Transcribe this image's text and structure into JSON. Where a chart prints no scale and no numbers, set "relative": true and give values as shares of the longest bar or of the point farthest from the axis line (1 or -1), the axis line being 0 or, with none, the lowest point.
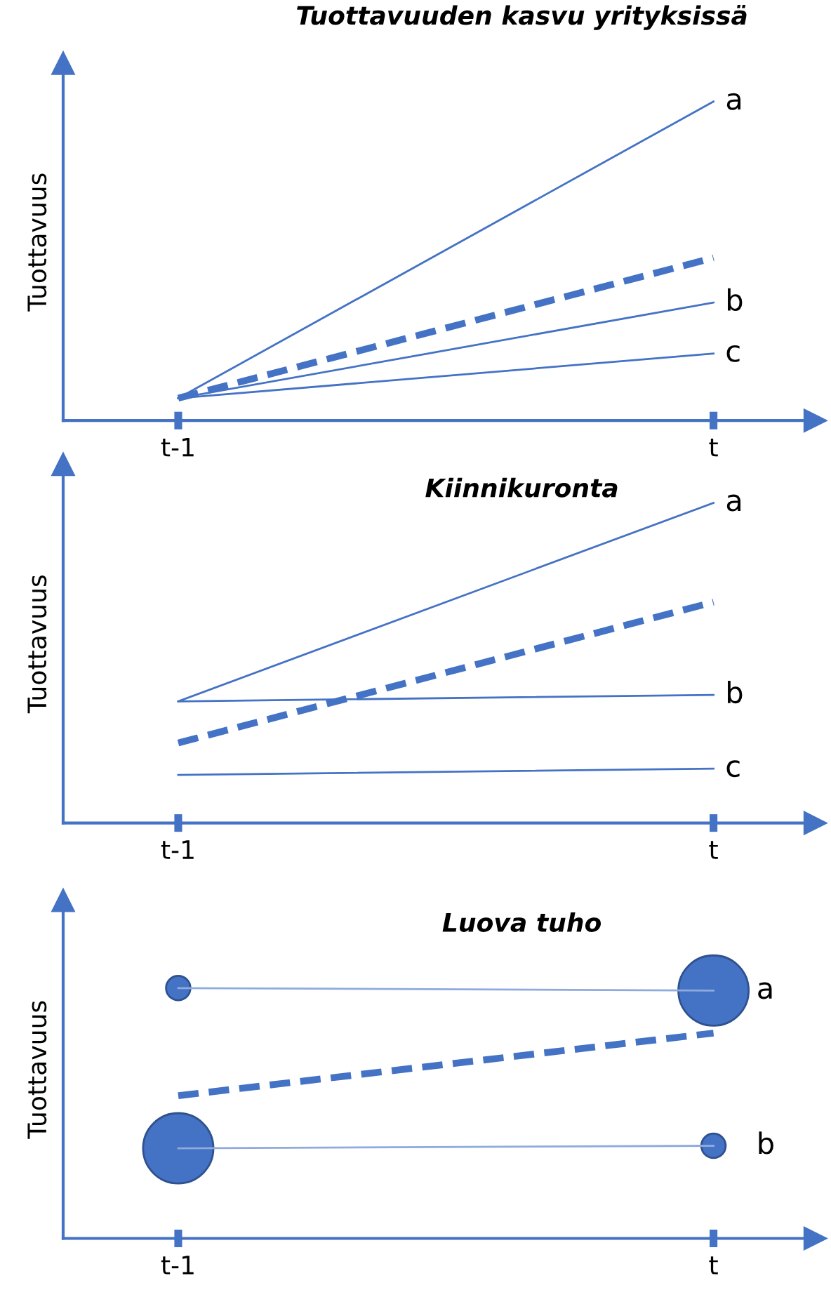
{
  "chart_data": [
    {
      "type": "line",
      "title": "Tuottavuuden kasvu yrityksissä",
      "ylabel": "Tuottavuus",
      "relative": true,
      "categories": [
        "t-1",
        "t"
      ],
      "grid": false,
      "legend": false,
      "marker": "none",
      "series": [
        {
          "name": "a",
          "color": "#4472c4",
          "values": [
            0.07,
            1
          ],
          "line_style": "solid"
        },
        {
          "color": "#4472c4",
          "values": [
            0.07,
            0.51
          ],
          "line_style": "dashed"
        },
        {
          "name": "b",
          "color": "#4472c4",
          "values": [
            0.07,
            0.37
          ],
          "line_style": "solid"
        },
        {
          "name": "c",
          "color": "#4472c4",
          "values": [
            0.07,
            0.21
          ],
          "line_style": "solid"
        }
      ]
    },
    {
      "type": "line",
      "title": "Kiinnikuronta",
      "ylabel": "Tuottavuus",
      "relative": true,
      "categories": [
        "t-1",
        "t"
      ],
      "grid": false,
      "legend": false,
      "marker": "none",
      "series": [
        {
          "name": "a",
          "color": "#4472c4",
          "values": [
            0.38,
            1
          ],
          "line_style": "solid"
        },
        {
          "color": "#4472c4",
          "values": [
            0.25,
            0.69
          ],
          "line_style": "dashed"
        },
        {
          "name": "b",
          "color": "#4472c4",
          "values": [
            0.38,
            0.4
          ],
          "line_style": "solid"
        },
        {
          "name": "c",
          "color": "#4472c4",
          "values": [
            0.15,
            0.17
          ],
          "line_style": "solid"
        }
      ]
    },
    {
      "type": "bubble",
      "title": "Luova tuho",
      "ylabel": "Tuottavuus",
      "relative": true,
      "categories": [
        "t-1",
        "t"
      ],
      "grid": false,
      "legend": false,
      "series": [
        {
          "name": "a",
          "color": "#4472c4",
          "values": [
            1,
            0.99
          ],
          "sizes": [
            0.12,
            1
          ]
        },
        {
          "type": "line",
          "color": "#8faadc",
          "values": [
            1,
            0.99
          ],
          "line_style": "solid",
          "marker": "none"
        },
        {
          "type": "line",
          "color": "#8faadc",
          "values": [
            0.36,
            0.37
          ],
          "line_style": "solid",
          "marker": "none"
        },
        {
          "type": "line",
          "color": "#4472c4",
          "values": [
            0.57,
            0.82
          ],
          "line_style": "dashed",
          "marker": "none"
        },
        {
          "name": "b",
          "color": "#4472c4",
          "values": [
            0.36,
            0.37
          ],
          "sizes": [
            1,
            0.12
          ]
        }
      ]
    }
  ]
}
